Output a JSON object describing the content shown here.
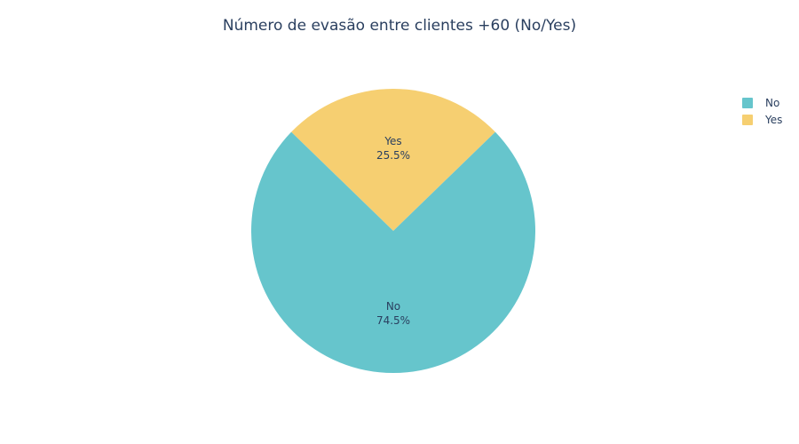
{
  "chart_data": {
    "type": "pie",
    "title": "Número de evasão entre clientes +60 (No/Yes)",
    "labels": [
      "No",
      "Yes"
    ],
    "values": [
      74.5,
      25.5
    ],
    "value_labels": [
      "74.5%",
      "25.5%"
    ],
    "colors": [
      "#66c5cc",
      "#f6cf71"
    ],
    "legend_position": "top-right"
  }
}
